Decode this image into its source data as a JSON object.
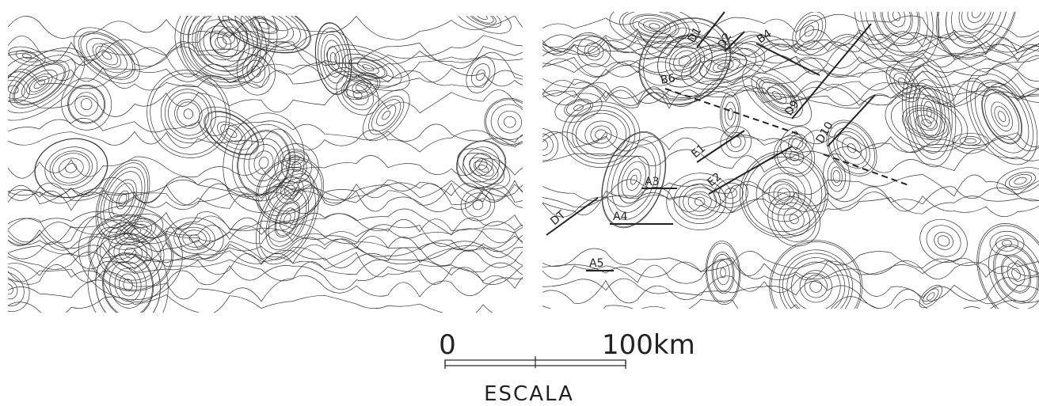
{
  "right_map": {
    "labels": [
      "D1",
      "D2",
      "B4",
      "B6",
      "D9",
      "D10",
      "E1",
      "E2",
      "A3",
      "A4",
      "A5",
      "DT"
    ]
  },
  "scale": {
    "start": "0",
    "end": "100km",
    "title": "ESCALA"
  }
}
